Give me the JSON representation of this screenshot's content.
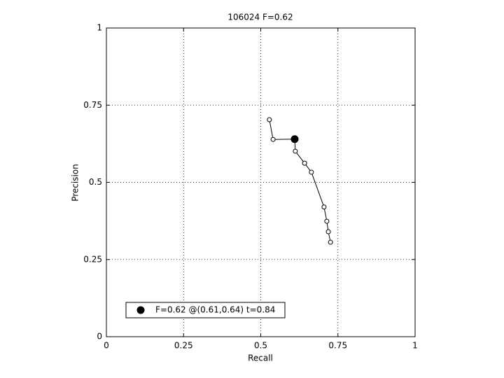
{
  "chart_data": {
    "type": "line",
    "title": "106024 F=0.62",
    "x_label": "Recall",
    "y_label": "Precision",
    "x": [
      0.528,
      0.54,
      0.61,
      0.612,
      0.642,
      0.664,
      0.705,
      0.714,
      0.719,
      0.726
    ],
    "series": [
      {
        "color": "#000000",
        "values": [
          0.703,
          0.639,
          0.64,
          0.601,
          0.562,
          0.533,
          0.42,
          0.374,
          0.34,
          0.306
        ]
      }
    ],
    "highlight": {
      "name": "F=0.62 @(0.61,0.64) t=0.84",
      "x": 0.61,
      "y": 0.64,
      "color": "#000000"
    },
    "xlim": [
      0,
      1
    ],
    "ylim": [
      0,
      1
    ],
    "xticks": [
      0,
      0.25,
      0.5,
      0.75,
      1
    ],
    "yticks": [
      0,
      0.25,
      0.5,
      0.75,
      1
    ],
    "grid": true
  }
}
